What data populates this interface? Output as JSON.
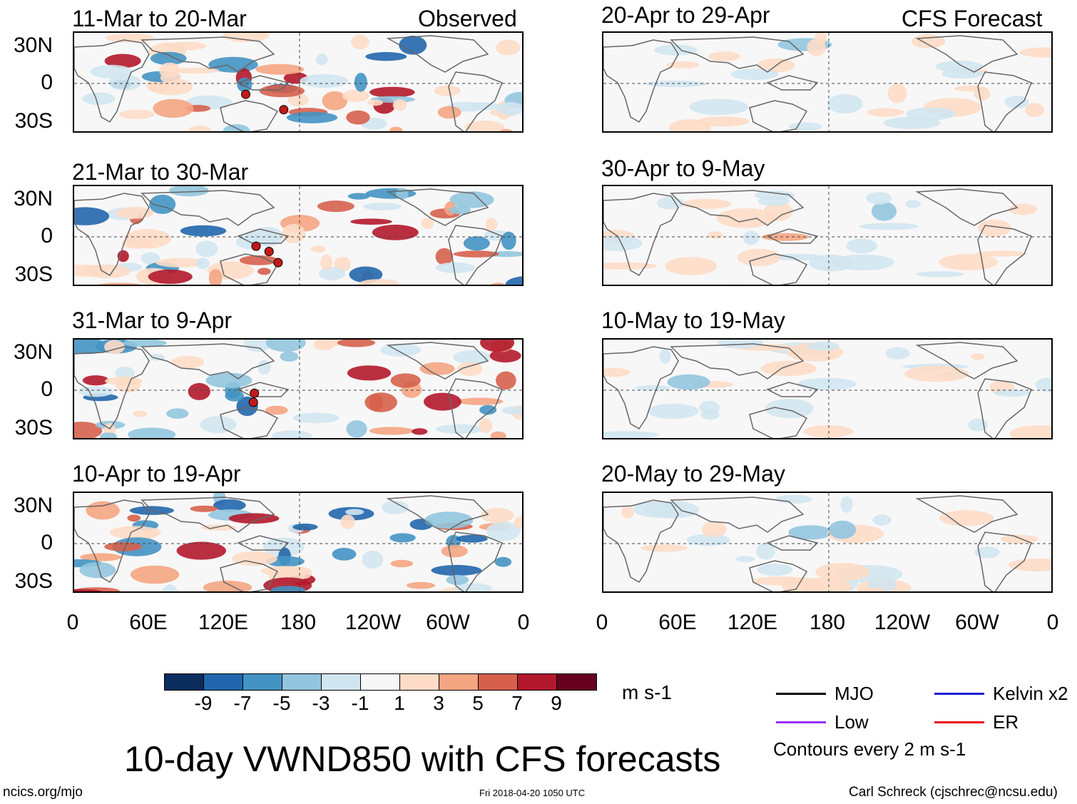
{
  "left_header": "Observed",
  "right_header": "CFS Forecast",
  "panels_left": [
    {
      "title": "11-Mar to 20-Mar"
    },
    {
      "title": "21-Mar to 30-Mar"
    },
    {
      "title": "31-Mar to 9-Apr"
    },
    {
      "title": "10-Apr to 19-Apr"
    }
  ],
  "panels_right": [
    {
      "title": "20-Apr to 29-Apr"
    },
    {
      "title": "30-Apr to 9-May"
    },
    {
      "title": "10-May to 19-May"
    },
    {
      "title": "20-May to 29-May"
    }
  ],
  "y_axis_labels": [
    "30N",
    "0",
    "30S"
  ],
  "x_axis_labels": [
    "0",
    "60E",
    "120E",
    "180",
    "120W",
    "60W",
    "0"
  ],
  "colorbar": {
    "colors": [
      "#0a2d5e",
      "#2166ac",
      "#4393c3",
      "#92c5de",
      "#d1e5f0",
      "#f7f7f7",
      "#fddbc7",
      "#f4a582",
      "#d6604d",
      "#b2182b",
      "#67001f"
    ],
    "labels": [
      "-9",
      "-7",
      "-5",
      "-3",
      "-1",
      "1",
      "3",
      "5",
      "7",
      "9"
    ],
    "units": "m s-1"
  },
  "legend": [
    {
      "label": "MJO",
      "color": "#000000"
    },
    {
      "label": "Kelvin x2",
      "color": "#1f1fd6"
    },
    {
      "label": "Low",
      "color": "#9b30ff"
    },
    {
      "label": "ER",
      "color": "#e8141e"
    }
  ],
  "contour_note": "Contours every 2 m s-1",
  "main_title": "10-day VWND850 with CFS forecasts",
  "footer_left": "ncics.org/mjo",
  "footer_center": "Fri 2018-04-20 1050 UTC",
  "footer_right": "Carl Schreck (cjschrec@ncsu.edu)"
}
